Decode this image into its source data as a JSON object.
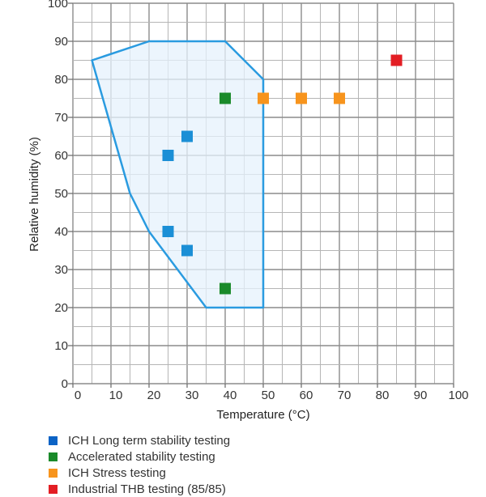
{
  "chart_data": {
    "type": "scatter",
    "xlabel": "Temperature (°C)",
    "ylabel": "Relative humidity (%)",
    "xlim": [
      0,
      100
    ],
    "ylim": [
      0,
      100
    ],
    "xticks": [
      0,
      10,
      20,
      30,
      40,
      50,
      60,
      70,
      80,
      90,
      100
    ],
    "yticks": [
      0,
      10,
      20,
      30,
      40,
      50,
      60,
      70,
      80,
      90,
      100
    ],
    "grid": true,
    "minor_grid_step": 5,
    "legend_placement": "bottom",
    "region": {
      "points": [
        [
          5,
          85
        ],
        [
          20,
          90
        ],
        [
          40,
          90
        ],
        [
          50,
          80
        ],
        [
          50,
          20
        ],
        [
          35,
          20
        ],
        [
          20,
          40
        ],
        [
          15,
          50
        ]
      ],
      "line_color": "#2a9be0",
      "fill_color": "#e6f1fc"
    },
    "series": [
      {
        "name": "ICH Long term stability testing",
        "color": "#1b8fd6",
        "legend_color": "#0b63c5",
        "points": [
          [
            25,
            60
          ],
          [
            30,
            65
          ],
          [
            25,
            40
          ],
          [
            30,
            35
          ]
        ]
      },
      {
        "name": "Accelerated stability testing",
        "color": "#1a8a2a",
        "legend_color": "#1a8a2a",
        "points": [
          [
            40,
            75
          ],
          [
            40,
            25
          ]
        ]
      },
      {
        "name": "ICH Stress testing",
        "color": "#f7941d",
        "legend_color": "#f7941d",
        "points": [
          [
            50,
            75
          ],
          [
            60,
            75
          ],
          [
            70,
            75
          ]
        ]
      },
      {
        "name": "Industrial THB testing (85/85)",
        "color": "#e31e24",
        "legend_color": "#e31e24",
        "points": [
          [
            85,
            85
          ]
        ]
      }
    ]
  }
}
